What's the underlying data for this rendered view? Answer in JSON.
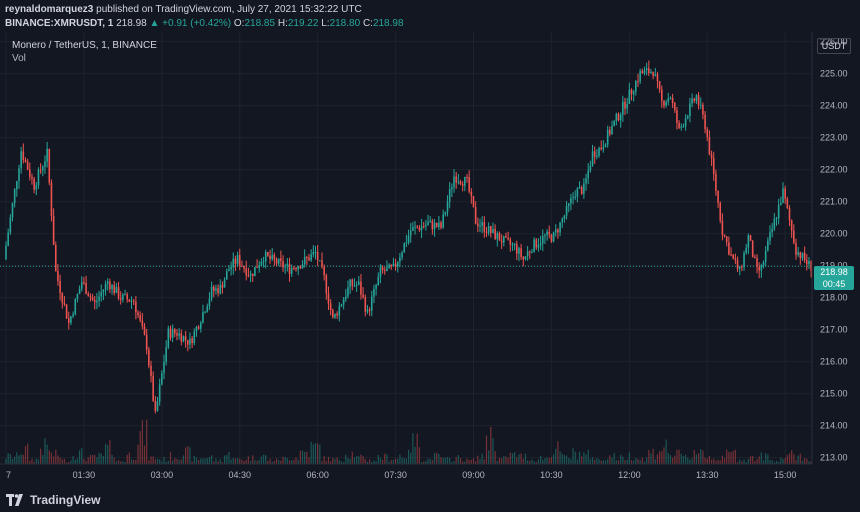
{
  "header": {
    "publisher": "reynaldomarquez3",
    "published_text": "published on TradingView.com, July 27, 2021 15:32:22 UTC",
    "symbol": "BINANCE:XMRUSDT, 1",
    "last": "218.98",
    "change": "▲ +0.91 (+0.42%)",
    "o_label": "O:",
    "o_value": "218.85",
    "h_label": "H:",
    "h_value": "219.22",
    "l_label": "L:",
    "l_value": "218.80",
    "c_label": "C:",
    "c_value": "218.98"
  },
  "legend": {
    "title": "Monero / TetherUS, 1, BINANCE",
    "vol": "Vol"
  },
  "axis": {
    "unit": "USDT",
    "last_price": "218.98",
    "countdown": "00:45"
  },
  "footer": {
    "brand": "TradingView"
  },
  "colors": {
    "background": "#131722",
    "up": "#26a69a",
    "down": "#ef5350",
    "grid": "#1e222d"
  },
  "chart_data": {
    "type": "candlestick",
    "y_ticks": [
      "226.00",
      "225.00",
      "224.00",
      "223.00",
      "222.00",
      "221.00",
      "220.00",
      "219.00",
      "218.00",
      "217.00",
      "216.00",
      "215.00",
      "214.00",
      "213.00"
    ],
    "ylim": [
      212.8,
      226.3
    ],
    "x_ticks": [
      "7",
      "01:30",
      "03:00",
      "04:30",
      "06:00",
      "07:30",
      "09:00",
      "10:30",
      "12:00",
      "13:30",
      "15:00"
    ],
    "x_tick_minutes": [
      0,
      90,
      180,
      270,
      360,
      450,
      540,
      630,
      720,
      810,
      900
    ],
    "x_range_minutes": [
      0,
      931
    ],
    "last_price_value": 218.98,
    "series": [
      {
        "name": "Price",
        "x": [
          0,
          20,
          35,
          50,
          60,
          75,
          90,
          105,
          120,
          135,
          150,
          165,
          175,
          190,
          200,
          215,
          225,
          240,
          250,
          260,
          270,
          285,
          300,
          315,
          330,
          345,
          360,
          370,
          380,
          400,
          410,
          420,
          435,
          450,
          470,
          490,
          505,
          520,
          535,
          545,
          555,
          565,
          580,
          590,
          600,
          610,
          625,
          635,
          650,
          660,
          670,
          680,
          690,
          700,
          710,
          720,
          735,
          750,
          760,
          770,
          780,
          790,
          800,
          810,
          820,
          830,
          840,
          850,
          860,
          870,
          875,
          885,
          900,
          915,
          931
        ],
        "y": [
          219.2,
          222.6,
          221.5,
          222.5,
          218.8,
          217.2,
          218.5,
          217.8,
          218.5,
          218.0,
          217.9,
          216.5,
          214.3,
          216.9,
          216.9,
          216.6,
          217.2,
          218.2,
          218.3,
          218.9,
          219.2,
          218.7,
          219.3,
          219.1,
          218.9,
          219.1,
          219.4,
          218.6,
          217.3,
          218.4,
          218.4,
          217.5,
          218.8,
          218.9,
          220.1,
          220.3,
          220.2,
          221.8,
          221.6,
          220.4,
          220.2,
          220.0,
          219.7,
          219.6,
          219.2,
          219.6,
          219.9,
          219.9,
          220.7,
          221.3,
          221.4,
          222.5,
          222.7,
          223.2,
          223.7,
          224.2,
          225.0,
          225.1,
          224.1,
          224.3,
          223.2,
          223.8,
          224.3,
          223.4,
          221.8,
          220.1,
          219.3,
          218.8,
          219.9,
          218.8,
          218.9,
          219.9,
          221.3,
          219.5,
          218.98
        ]
      },
      {
        "name": "Vol",
        "values": [
          0.1,
          0.18,
          0.06,
          0.22,
          0.12,
          0.05,
          0.14,
          0.08,
          0.1,
          0.2,
          0.04,
          0.12,
          0.38,
          0.08,
          0.06,
          0.1,
          0.15,
          0.07,
          0.09,
          0.05,
          0.12,
          0.06,
          0.08,
          0.1,
          0.05,
          0.07,
          0.09,
          0.16,
          0.22,
          0.07,
          0.06,
          0.14,
          0.08,
          0.05,
          0.09,
          0.07,
          0.12,
          0.28,
          0.06,
          0.1,
          0.06,
          0.08,
          0.05,
          0.09,
          0.36,
          0.07,
          0.12,
          0.1,
          0.06,
          0.08,
          0.2,
          0.09,
          0.14,
          0.12,
          0.06,
          0.1,
          0.08,
          0.11,
          0.07,
          0.15,
          0.22,
          0.12,
          0.09,
          0.18,
          0.1,
          0.07,
          0.14,
          0.06,
          0.08,
          0.1,
          0.05,
          0.09,
          0.12,
          0.07,
          0.08
        ]
      }
    ]
  }
}
